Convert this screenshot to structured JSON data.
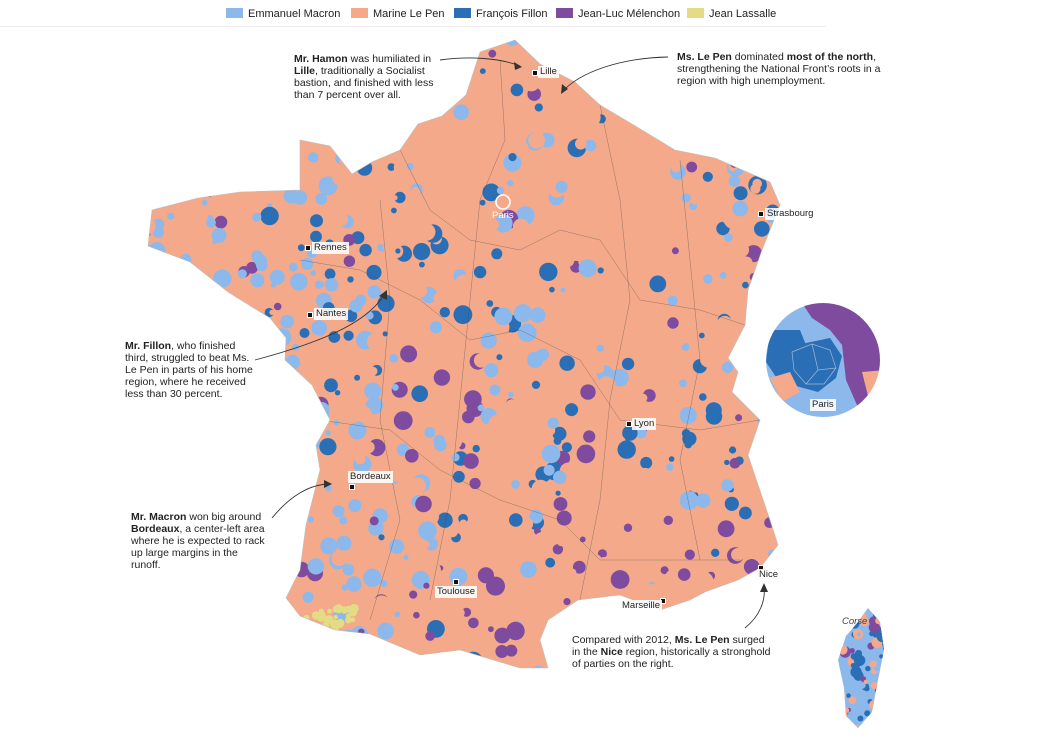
{
  "colors": {
    "macron": "#8db8ec",
    "lepen": "#f3a98a",
    "fillon": "#2a6eb5",
    "melenchon": "#7e4b9e",
    "lassalle": "#e3dc84",
    "borders": "#4a4a4a"
  },
  "legend": [
    {
      "label": "Emmanuel Macron",
      "color_key": "macron"
    },
    {
      "label": "Marine Le Pen",
      "color_key": "lepen"
    },
    {
      "label": "François Fillon",
      "color_key": "fillon"
    },
    {
      "label": "Jean-Luc Mélenchon",
      "color_key": "melenchon"
    },
    {
      "label": "Jean Lassalle",
      "color_key": "lassalle"
    }
  ],
  "cities": {
    "lille": "Lille",
    "paris": "Paris",
    "strasbourg": "Strasbourg",
    "rennes": "Rennes",
    "nantes": "Nantes",
    "lyon": "Lyon",
    "bordeaux": "Bordeaux",
    "toulouse": "Toulouse",
    "marseille": "Marseille",
    "nice": "Nice",
    "paris_inset": "Paris"
  },
  "corse_label": "Corse",
  "annotations": {
    "hamon": {
      "b1": "Mr. Hamon",
      "t1": " was humiliated in ",
      "b2": "Lille",
      "t2": ", traditionally a Socialist bastion, and finished with less than 7 percent over all."
    },
    "lepen_north": {
      "b1": "Ms. Le Pen",
      "t1": " dominated ",
      "b2": "most of the north",
      "t2": ", strengthening the National Front’s roots in a region with high unemployment."
    },
    "fillon": {
      "b1": "Mr. Fillon",
      "t1": ", who finished third, struggled to beat Ms. Le Pen in parts of his home region, where he received less than 30 percent."
    },
    "macron": {
      "b1": "Mr. Macron",
      "t1": " won big around ",
      "b2": "Bordeaux",
      "t2": ", a center-left area where he is expected to rack up large margins in the runoff."
    },
    "lepen_nice": {
      "t0": "Compared with 2012, ",
      "b1": "Ms. Le Pen",
      "t1": " surged in the ",
      "b2": "Nice",
      "t2": " region, historically a stronghold of parties on the right."
    }
  }
}
